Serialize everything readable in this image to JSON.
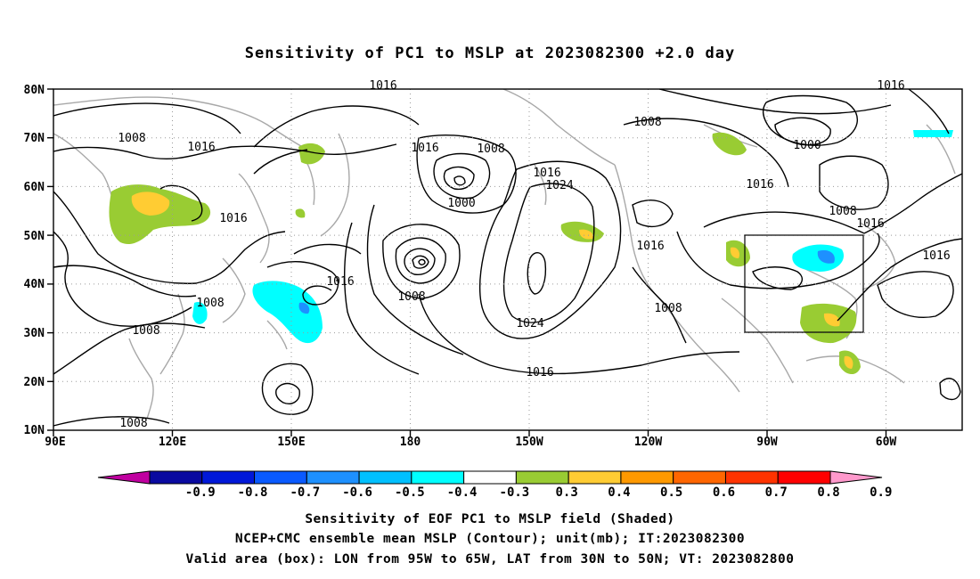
{
  "title": "Sensitivity of PC1 to MSLP at 2023082300 +2.0 day",
  "map": {
    "lat_ticks": [
      "80N",
      "70N",
      "60N",
      "50N",
      "40N",
      "30N",
      "20N",
      "10N"
    ],
    "lon_ticks": [
      "90E",
      "120E",
      "150E",
      "180",
      "150W",
      "120W",
      "90W",
      "60W"
    ],
    "contour_labels": [
      "1008",
      "1016",
      "1008",
      "1016",
      "1016",
      "1008",
      "1000",
      "1016",
      "1024",
      "1016",
      "1016",
      "1008",
      "1008",
      "1016",
      "1024",
      "1016",
      "1008",
      "1016",
      "1000",
      "1016",
      "1008",
      "1016",
      "1016",
      "1008",
      "1008"
    ],
    "box": {
      "lon": [
        "95W",
        "65W"
      ],
      "lat": [
        "30N",
        "50N"
      ]
    }
  },
  "colorbar": {
    "labels": [
      "-0.9",
      "-0.8",
      "-0.7",
      "-0.6",
      "-0.5",
      "-0.4",
      "-0.3",
      "0.3",
      "0.4",
      "0.5",
      "0.6",
      "0.7",
      "0.8",
      "0.9"
    ],
    "colors": [
      "#c000a0",
      "#0a0aa0",
      "#0018d8",
      "#0a5aff",
      "#1e90ff",
      "#00c0ff",
      "#00ffff",
      "#ffffff",
      "#99cc33",
      "#ffcc33",
      "#ff9900",
      "#ff6600",
      "#ff3300",
      "#ff0000",
      "#ff99cc"
    ]
  },
  "captions": {
    "line1": "Sensitivity of EOF PC1 to MSLP field (Shaded)",
    "line2": "NCEP+CMC ensemble mean MSLP (Contour); unit(mb); IT:2023082300",
    "line3": "Valid area (box): LON from 95W to 65W, LAT from 30N to 50N; VT: 2023082800"
  }
}
